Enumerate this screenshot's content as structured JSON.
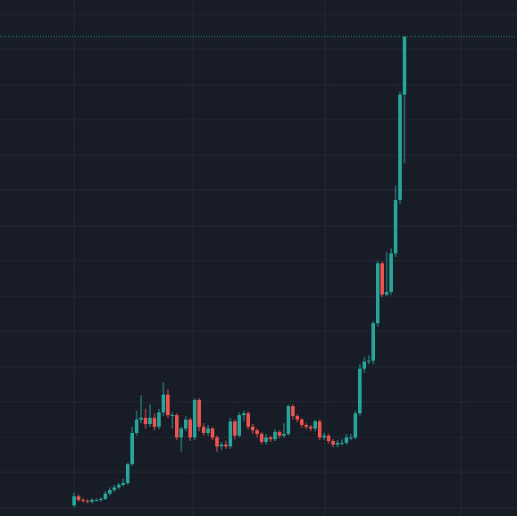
{
  "chart_data": {
    "type": "candlestick",
    "x": [
      0,
      1,
      2,
      3,
      4,
      5,
      6,
      7,
      8,
      9,
      10,
      11,
      12,
      13,
      14,
      15,
      16,
      17,
      18,
      19,
      20,
      21,
      22,
      23,
      24,
      25,
      26,
      27,
      28,
      29,
      30,
      31,
      32,
      33,
      34,
      35,
      36,
      37,
      38,
      39,
      40,
      41,
      42,
      43,
      44,
      45,
      46,
      47,
      48,
      49,
      50,
      51,
      52,
      53,
      54,
      55,
      56,
      57,
      58,
      59,
      60,
      61,
      62,
      63,
      64,
      65,
      66,
      67,
      68,
      69,
      70,
      71,
      72,
      73,
      74
    ],
    "open": [
      12,
      22,
      18,
      17,
      16,
      18,
      18,
      19,
      25,
      29,
      32,
      35,
      37,
      58,
      93,
      108,
      110,
      103,
      110,
      100,
      116,
      136,
      113,
      113,
      88,
      98,
      108,
      88,
      130,
      100,
      93,
      98,
      88,
      78,
      80,
      78,
      106,
      90,
      113,
      115,
      100,
      96,
      92,
      83,
      88,
      86,
      94,
      90,
      92,
      123,
      112,
      108,
      102,
      100,
      98,
      106,
      88,
      90,
      84,
      80,
      82,
      82,
      88,
      88,
      115,
      165,
      173,
      174,
      216,
      283,
      248,
      251,
      294,
      354,
      472
    ],
    "high": [
      26,
      24,
      20,
      19,
      20,
      20,
      21,
      28,
      32,
      35,
      37,
      42,
      60,
      100,
      118,
      135,
      120,
      125,
      115,
      120,
      150,
      142,
      116,
      115,
      100,
      112,
      110,
      132,
      132,
      104,
      102,
      100,
      90,
      83,
      84,
      110,
      108,
      116,
      118,
      117,
      103,
      98,
      94,
      92,
      90,
      97,
      96,
      104,
      125,
      125,
      114,
      110,
      104,
      102,
      108,
      108,
      93,
      92,
      86,
      85,
      86,
      92,
      92,
      118,
      170,
      178,
      180,
      218,
      286,
      285,
      296,
      300,
      370,
      475,
      537
    ],
    "low": [
      10,
      16,
      15,
      14,
      14,
      16,
      16,
      18,
      23,
      27,
      30,
      33,
      35,
      56,
      90,
      104,
      98,
      100,
      96,
      97,
      112,
      110,
      98,
      85,
      72,
      95,
      84,
      85,
      95,
      90,
      90,
      85,
      72,
      74,
      75,
      75,
      86,
      88,
      106,
      97,
      92,
      88,
      80,
      80,
      83,
      84,
      87,
      88,
      90,
      108,
      105,
      99,
      97,
      95,
      95,
      85,
      85,
      81,
      77,
      77,
      79,
      80,
      85,
      86,
      112,
      160,
      170,
      170,
      212,
      245,
      246,
      248,
      290,
      350,
      395
    ],
    "close": [
      22,
      18,
      17,
      16,
      18,
      18,
      19,
      25,
      29,
      32,
      35,
      37,
      58,
      93,
      108,
      110,
      103,
      110,
      100,
      116,
      136,
      113,
      113,
      88,
      98,
      108,
      88,
      130,
      100,
      93,
      98,
      88,
      78,
      80,
      78,
      106,
      90,
      113,
      115,
      100,
      96,
      92,
      83,
      88,
      86,
      94,
      90,
      92,
      123,
      112,
      108,
      102,
      100,
      98,
      106,
      88,
      90,
      84,
      80,
      82,
      82,
      88,
      88,
      115,
      165,
      173,
      174,
      216,
      283,
      248,
      251,
      294,
      354,
      472,
      537
    ],
    "up_color": "#26a69a",
    "down_color": "#ef5350",
    "last_price": 537,
    "xlim": [
      -16.6,
      99.2
    ],
    "xticks": [
      0,
      26.6,
      56.2,
      86.6
    ],
    "ylim": [
      0,
      578
    ],
    "yticks": [
      9,
      49,
      88,
      128,
      167,
      207,
      246,
      286,
      325,
      365,
      404,
      444,
      483,
      523,
      562
    ],
    "grid": true
  }
}
